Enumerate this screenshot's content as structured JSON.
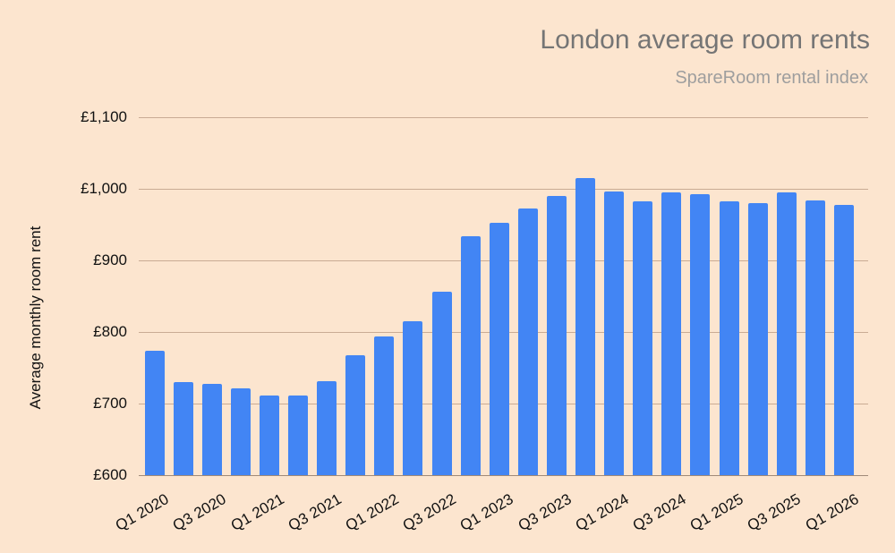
{
  "chart_data": {
    "type": "bar",
    "title": "London average room rents",
    "subtitle": "SpareRoom rental index",
    "xlabel": "",
    "ylabel": "Average monthly room rent",
    "ylim": [
      600,
      1100
    ],
    "yticks": [
      "£600",
      "£700",
      "£800",
      "£900",
      "£1,000",
      "£1,100"
    ],
    "grid": true,
    "legend": null,
    "bar_color": "#4285f4",
    "background": "#fce5cf",
    "categories": [
      "Q1 2020",
      "Q2 2020",
      "Q3 2020",
      "Q4 2020",
      "Q1 2021",
      "Q2 2021",
      "Q3 2021",
      "Q4 2021",
      "Q1 2022",
      "Q2 2022",
      "Q3 2022",
      "Q4 2022",
      "Q1 2023",
      "Q2 2023",
      "Q3 2023",
      "Q4 2023",
      "Q1 2024",
      "Q2 2024",
      "Q3 2024",
      "Q4 2024",
      "Q1 2025",
      "Q2 2025",
      "Q3 2025",
      "Q4 2025",
      "Q1 2026"
    ],
    "visible_xticks": [
      "Q1 2020",
      "Q3 2020",
      "Q1 2021",
      "Q3 2021",
      "Q1 2022",
      "Q3 2022",
      "Q1 2023",
      "Q3 2023",
      "Q1 2024",
      "Q3 2024",
      "Q1 2025",
      "Q3 2025",
      "Q1 2026"
    ],
    "values": [
      774,
      730,
      727,
      721,
      711,
      711,
      731,
      767,
      794,
      815,
      856,
      934,
      952,
      973,
      990,
      1015,
      996,
      982,
      995,
      992,
      982,
      980,
      995,
      984,
      978
    ]
  }
}
